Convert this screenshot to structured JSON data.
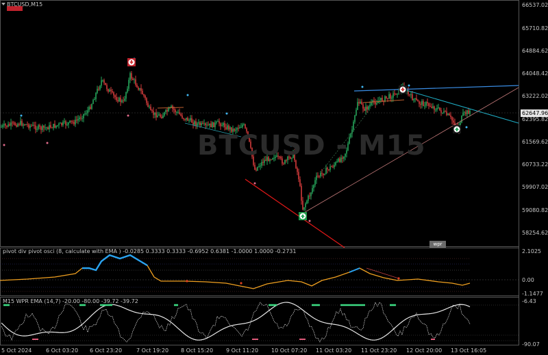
{
  "symbol_title": "BTCUSD,M15",
  "watermark": "BTCUSD - M15",
  "current_price": "62647.96",
  "wpr_button": "wpr",
  "osc_title": "pivot div pivot osci (8, calculate with EMA ) -0.0285 0.3333 0.3333 -0.6952 0.6381 -1.0000 1.0000 -0.2731",
  "wpr_title": "M15 WPR  EMA (14,7) -20.00 -80.00 -39.72 -39.72",
  "price_axis": [
    "66537.02",
    "65710.82",
    "64884.62",
    "64048.42",
    "63222.02",
    "62395.82",
    "61569.62",
    "60733.22",
    "59907.02",
    "59080.82",
    "58254.62"
  ],
  "osc_axis": [
    "2.1025",
    "0.00",
    "-1.1477"
  ],
  "wpr_axis": [
    "-6.43",
    "-90.07"
  ],
  "time_axis": [
    "5 Oct 2024",
    "6 Oct 03:20",
    "6 Oct 23:20",
    "7 Oct 19:20",
    "8 Oct 15:20",
    "9 Oct 11:20",
    "10 Oct 07:20",
    "11 Oct 03:20",
    "11 Oct 23:20",
    "12 Oct 20:00",
    "13 Oct 16:05"
  ],
  "colors": {
    "bg": "#000000",
    "bull": "#26a65b",
    "bear": "#d43b3b",
    "trend_blue": "#3a8ee6",
    "trend_cyan": "#1fb0c8",
    "osc_orange": "#f0a020",
    "osc_blue": "#2aa3f0",
    "wpr_white": "#e8e8e8",
    "wpr_green": "#3ddc84",
    "wpr_pink": "#e05a7a",
    "red_line": "#e01818"
  },
  "icons": [
    "dropdown-triangle-icon",
    "sell-arrow-icon",
    "buy-arrow-icon"
  ]
}
